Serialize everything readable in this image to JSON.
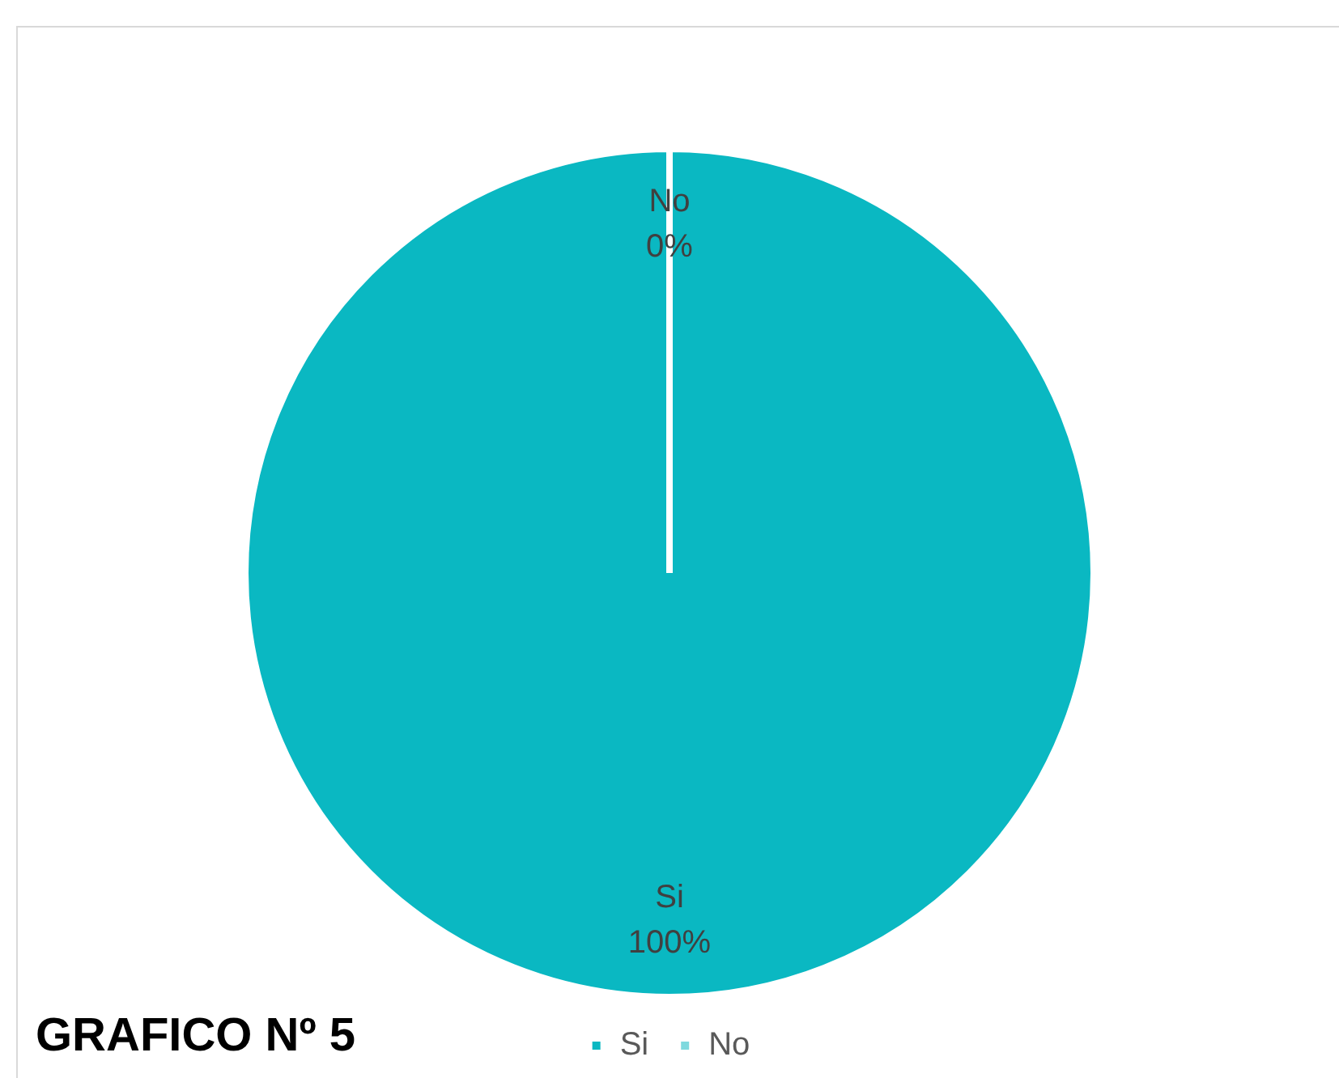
{
  "chart_data": {
    "type": "pie",
    "title": "GRAFICO Nº 5",
    "categories": [
      "Si",
      "No"
    ],
    "values": [
      100,
      0
    ],
    "colors": [
      "#0ab8c2",
      "#7fd9de"
    ],
    "value_labels": [
      "100%",
      "0%"
    ],
    "legend": "bottom"
  }
}
